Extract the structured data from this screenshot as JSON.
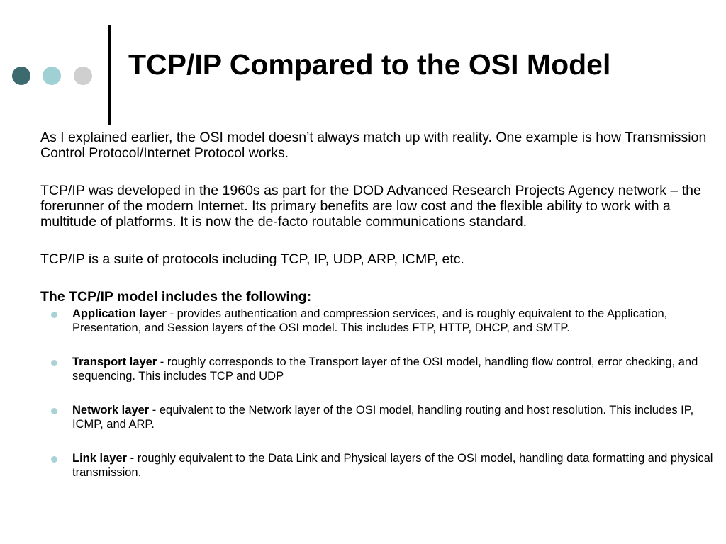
{
  "theme": {
    "dot_colors": [
      "#3b6b6f",
      "#9fd0d3",
      "#cfcfcf"
    ],
    "bullet_color": "#a9d2d6"
  },
  "slide": {
    "title": "TCP/IP Compared to the OSI Model",
    "paragraphs": [
      "As I explained earlier, the OSI model doesn’t always match up with reality.  One example is how Transmission Control Protocol/Internet Protocol works.",
      "TCP/IP was developed in the 1960s as part for the DOD Advanced Research Projects Agency network – the forerunner of the modern Internet.  Its primary benefits are low cost and the flexible ability to work with a multitude of platforms.  It is now the de-facto routable communications standard.",
      "TCP/IP is a suite of protocols including TCP, IP, UDP, ARP, ICMP, etc."
    ],
    "list_heading": "The TCP/IP model includes the following:",
    "layers": [
      {
        "term": "Application layer",
        "text": " -  provides authentication and compression services, and is roughly equivalent to the Application, Presentation, and Session layers of the OSI model.  This includes FTP, HTTP, DHCP, and SMTP."
      },
      {
        "term": "Transport layer",
        "text": " -  roughly corresponds to the Transport layer of the OSI model, handling flow control, error checking, and sequencing.  This includes TCP and UDP"
      },
      {
        "term": "Network layer",
        "text": " -  equivalent to the Network layer of the OSI model, handling routing and host resolution.  This includes IP, ICMP, and ARP."
      },
      {
        "term": "Link layer",
        "text": " -  roughly equivalent to the Data Link and Physical layers of the OSI model, handling data formatting and physical transmission."
      }
    ]
  }
}
